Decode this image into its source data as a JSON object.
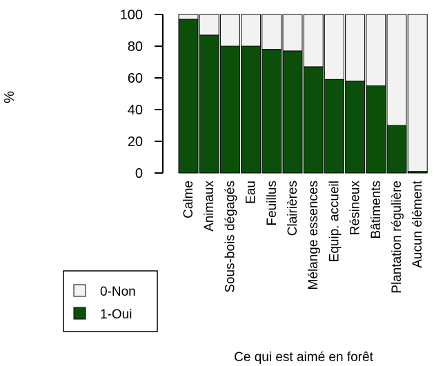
{
  "chart_data": {
    "type": "bar",
    "stacked": true,
    "percent": true,
    "xlabel": "Ce qui est aimé en forêt",
    "ylabel": "%",
    "ylim": [
      0,
      100
    ],
    "yticks": [
      "0",
      "20",
      "40",
      "60",
      "80",
      "100"
    ],
    "categories": [
      "Calme",
      "Animaux",
      "Sous-bois dégagés",
      "Eau",
      "Feuillus",
      "Clairières",
      "Mélange essences",
      "Equip. accueil",
      "Résineux",
      "Bâtiments",
      "Plantation régulière",
      "Aucun élément"
    ],
    "series": [
      {
        "name": "1-Oui",
        "color": "#0b4f0b",
        "values": [
          97,
          87,
          80,
          80,
          78,
          77,
          67,
          59,
          58,
          55,
          30,
          1
        ]
      },
      {
        "name": "0-Non",
        "color": "#f2f2f2",
        "values": [
          3,
          13,
          20,
          20,
          22,
          23,
          33,
          41,
          42,
          45,
          70,
          99
        ]
      }
    ],
    "legend": {
      "position": "bottom-left",
      "entries": [
        "0-Non",
        "1-Oui"
      ]
    }
  }
}
